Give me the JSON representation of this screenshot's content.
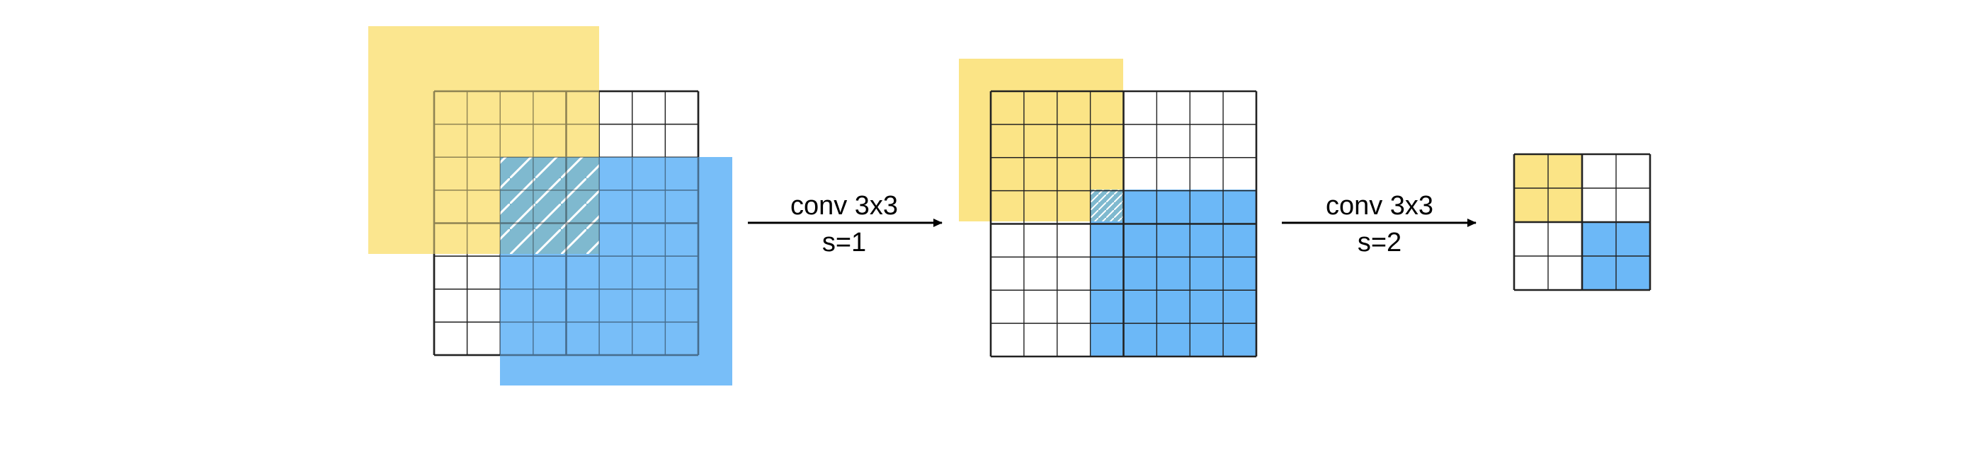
{
  "colors": {
    "yellow": "#fbe486",
    "blue": "#6cb8f7",
    "overlap": "#7fb9cf",
    "grid_line": "#222222",
    "arrow": "#000000"
  },
  "stage1": {
    "grid_cells": 8
  },
  "stage2": {
    "grid_cells": 8
  },
  "stage3": {
    "grid_cells": 4
  },
  "arrow1": {
    "line1": "conv 3x3",
    "line2": "s=1"
  },
  "arrow2": {
    "line1": "conv 3x3",
    "line2": "s=2"
  }
}
